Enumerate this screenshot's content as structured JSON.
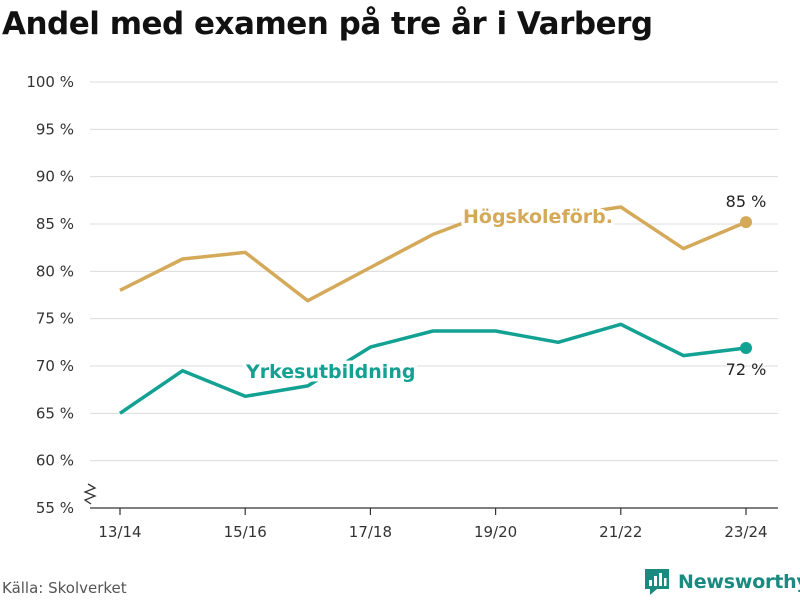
{
  "title": "Andel med examen på tre år i Varberg",
  "source": "Källa: Skolverket",
  "brand": {
    "name": "Newsworthy",
    "logo_icon": "newsworthy-logo-icon",
    "color": "#1a8a80"
  },
  "chart_data": {
    "type": "line",
    "x": [
      "13/14",
      "14/15",
      "15/16",
      "16/17",
      "17/18",
      "18/19",
      "19/20",
      "20/21",
      "21/22",
      "22/23",
      "23/24"
    ],
    "x_tick_labels": [
      "13/14",
      "15/16",
      "17/18",
      "19/20",
      "21/22",
      "23/24"
    ],
    "ylim": [
      55,
      100
    ],
    "y_ticks": [
      55,
      60,
      65,
      70,
      75,
      80,
      85,
      90,
      95,
      100
    ],
    "y_tick_labels": [
      "55 %",
      "60 %",
      "65 %",
      "70 %",
      "75 %",
      "80 %",
      "85 %",
      "90 %",
      "95 %",
      "100 %"
    ],
    "y_axis_break": true,
    "grid": true,
    "series": [
      {
        "name": "Högskoleförb.",
        "color": "#d4aa5a",
        "values": [
          78,
          81.3,
          82,
          76.9,
          80.4,
          83.9,
          86.4,
          85.8,
          86.8,
          82.4,
          85.2
        ],
        "end_label": "85 %"
      },
      {
        "name": "Yrkesutbildning",
        "color": "#12a192",
        "values": [
          65,
          69.5,
          66.8,
          67.9,
          72,
          73.7,
          73.7,
          72.5,
          74.4,
          71.1,
          71.9
        ],
        "end_label": "72 %"
      }
    ]
  }
}
